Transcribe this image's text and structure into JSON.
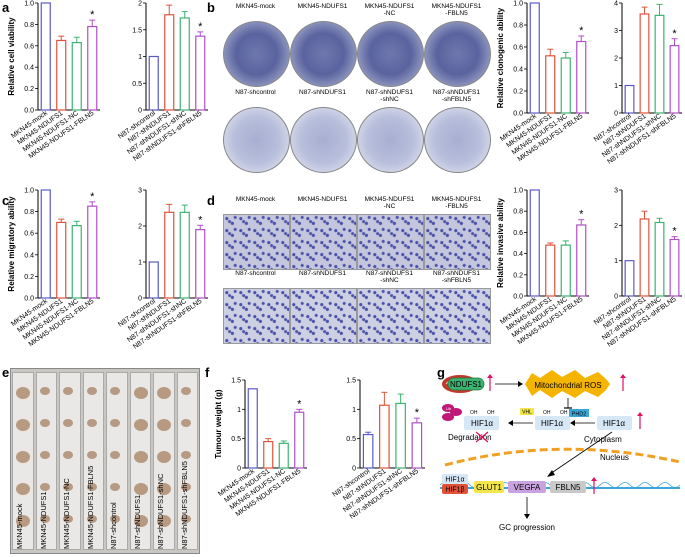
{
  "panels": {
    "a": "a",
    "b": "b",
    "c": "c",
    "d": "d",
    "e": "e",
    "f": "f",
    "g": "g"
  },
  "colors": {
    "mock": "#5b5bc8",
    "ndufs1": "#e0533a",
    "nc": "#3cb371",
    "fbln5": "#b050c8",
    "violet": "#7a4fc4"
  },
  "star": "*",
  "cats_mkn": [
    "MKN45-mock",
    "MKN45-NDUFS1",
    "MKN45-NDUFS1-NC",
    "MKN45-NDUFS1-FBLN5"
  ],
  "cats_n87": [
    "N87-shcontrol",
    "N87-shNDUFS1",
    "N87-shNDUFS1-shNC",
    "N87-shNDUFS1-shFBLN5"
  ],
  "chart_data": [
    {
      "id": "a1",
      "type": "bar",
      "ylabel": "Relative cell viability",
      "ylim": [
        0,
        1.0
      ],
      "ticks": [
        0,
        0.2,
        0.4,
        0.6,
        0.8,
        1.0
      ],
      "values": [
        1.0,
        0.65,
        0.63,
        0.78
      ],
      "err": [
        0,
        0.04,
        0.05,
        0.06
      ],
      "star_index": 3
    },
    {
      "id": "a2",
      "type": "bar",
      "ylabel": "",
      "ylim": [
        0,
        2.0
      ],
      "ticks": [
        0,
        0.5,
        1.0,
        1.5,
        2.0
      ],
      "values": [
        1.0,
        1.78,
        1.72,
        1.38
      ],
      "err": [
        0,
        0.18,
        0.12,
        0.08
      ],
      "star_index": 3
    },
    {
      "id": "b1",
      "type": "bar",
      "ylabel": "Relative clonogenic ability",
      "ylim": [
        0,
        1.0
      ],
      "ticks": [
        0,
        0.2,
        0.4,
        0.6,
        0.8,
        1.0
      ],
      "values": [
        1.0,
        0.52,
        0.5,
        0.65
      ],
      "err": [
        0,
        0.06,
        0.05,
        0.05
      ],
      "star_index": 3
    },
    {
      "id": "b2",
      "type": "bar",
      "ylabel": "",
      "ylim": [
        0,
        4
      ],
      "ticks": [
        0,
        1,
        2,
        3,
        4
      ],
      "values": [
        1.0,
        3.6,
        3.55,
        2.45
      ],
      "err": [
        0,
        0.25,
        0.4,
        0.25
      ],
      "star_index": 3
    },
    {
      "id": "c1",
      "type": "bar",
      "ylabel": "Relative migratory ability",
      "ylim": [
        0,
        1.0
      ],
      "ticks": [
        0,
        0.2,
        0.4,
        0.6,
        0.8,
        1.0
      ],
      "values": [
        1.0,
        0.7,
        0.67,
        0.85
      ],
      "err": [
        0,
        0.03,
        0.04,
        0.04
      ],
      "star_index": 3
    },
    {
      "id": "c2",
      "type": "bar",
      "ylabel": "",
      "ylim": [
        0,
        3
      ],
      "ticks": [
        0,
        1,
        2,
        3
      ],
      "values": [
        1.0,
        2.38,
        2.38,
        1.9
      ],
      "err": [
        0,
        0.22,
        0.2,
        0.12
      ],
      "star_index": 3
    },
    {
      "id": "d1",
      "type": "bar",
      "ylabel": "Relative invasive ability",
      "ylim": [
        0,
        1.0
      ],
      "ticks": [
        0,
        0.2,
        0.4,
        0.6,
        0.8,
        1.0
      ],
      "values": [
        1.0,
        0.48,
        0.48,
        0.67
      ],
      "err": [
        0,
        0.02,
        0.04,
        0.05
      ],
      "star_index": 3
    },
    {
      "id": "d2",
      "type": "bar",
      "ylabel": "",
      "ylim": [
        0,
        3
      ],
      "ticks": [
        0,
        1,
        2,
        3
      ],
      "values": [
        1.0,
        2.18,
        2.08,
        1.6
      ],
      "err": [
        0,
        0.22,
        0.12,
        0.08
      ],
      "star_index": 3
    },
    {
      "id": "f1",
      "type": "bar",
      "ylabel": "Tumour weight (g)",
      "ylim": [
        0,
        1.5
      ],
      "ticks": [
        0,
        0.5,
        1.0,
        1.5
      ],
      "values": [
        1.35,
        0.45,
        0.42,
        0.95
      ],
      "err": [
        0,
        0.05,
        0.04,
        0.05
      ],
      "star_index": 3
    },
    {
      "id": "f2",
      "type": "bar",
      "ylabel": "",
      "ylim": [
        0,
        1.5
      ],
      "ticks": [
        0,
        0.5,
        1.0,
        1.5
      ],
      "values": [
        0.57,
        1.07,
        1.1,
        0.77
      ],
      "err": [
        0.04,
        0.22,
        0.16,
        0.08
      ],
      "star_index": 3
    }
  ],
  "b_photos": {
    "top": [
      "MKN45-mock",
      "MKN45-NDUFS1",
      "MKN45-NDUFS1\n-NC",
      "MKN45-NDUFS1\n-FBLN5"
    ],
    "bottom": [
      "N87-shcontrol",
      "N87-shNDUFS1",
      "N87-shNDUFS1\n-shNC",
      "N87-shNDUFS1\n-shFBLN5"
    ]
  },
  "d_photos": {
    "top": [
      "MKN45-mock",
      "MKN45-NDUFS1",
      "MKN45-NDUFS1\n-NC",
      "MKN45-NDUFS1\n-FBLN5"
    ],
    "bottom": [
      "N87-shcontrol",
      "N87-shNDUFS1",
      "N87-shNDUFS1\n-shNC",
      "N87-shNDUFS1\n-shFBLN5"
    ]
  },
  "e_labels": [
    "MKN45-mock",
    "MKN45-NDUFS1",
    "MKN45-NDUFS1-NC",
    "MKN45-NDUFS1-FBLN5",
    "N87-shcontrol",
    "N87-shNDUFS1",
    "N87-shNDUFS1-shNC",
    "N87-shNDUFS1-shFBLN5"
  ],
  "diagram": {
    "ndufs1": "NDUFS1",
    "ros": "Mitochondrial ROS",
    "phd2": "PHD2",
    "vhl": "VHL",
    "hif1a": "HIF1α",
    "oh": "OH",
    "ub": "Ub",
    "degradation": "Degradation",
    "cytoplasm": "Cytoplasm",
    "nucleus": "Nucleus",
    "hif1b": "HIF1β",
    "glut1": "GLUT1",
    "vegfa": "VEGFA",
    "fbln5": "FBLN5",
    "gc": "GC progression"
  }
}
